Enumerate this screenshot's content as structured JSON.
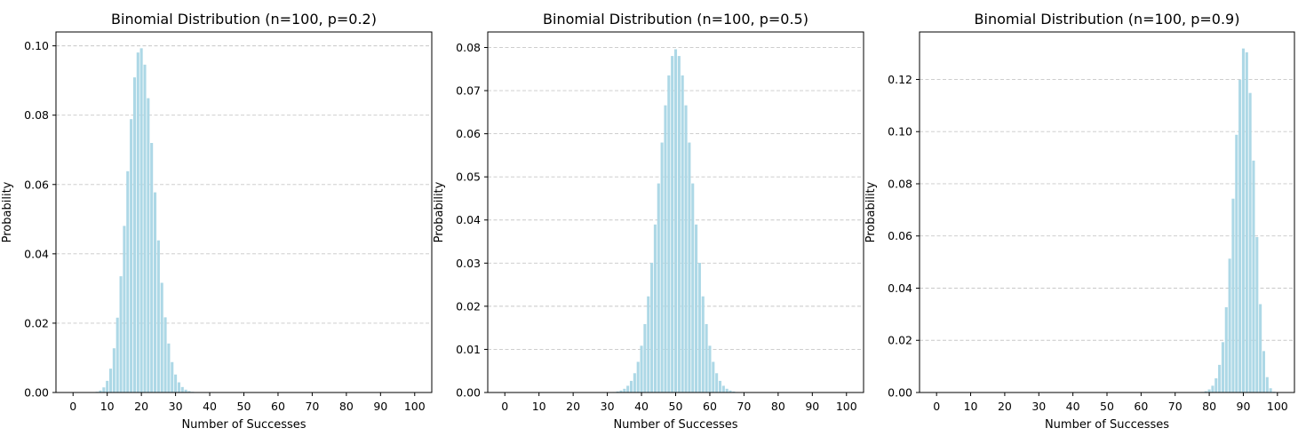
{
  "chart_data": [
    {
      "type": "bar",
      "title": "Binomial Distribution (n=100, p=0.2)",
      "xlabel": "Number of Successes",
      "ylabel": "Probability",
      "n": 100,
      "p": 0.2,
      "xlim": [
        -5,
        105
      ],
      "ylim": [
        0,
        0.104
      ],
      "xticks": [
        0,
        10,
        20,
        30,
        40,
        50,
        60,
        70,
        80,
        90,
        100
      ],
      "yticks": [
        0.0,
        0.02,
        0.04,
        0.06,
        0.08,
        0.1
      ],
      "ytick_labels": [
        "0.00",
        "0.02",
        "0.04",
        "0.06",
        "0.08",
        "0.10"
      ],
      "grid": "y-dashed",
      "bar_color": "#ADD8E6"
    },
    {
      "type": "bar",
      "title": "Binomial Distribution (n=100, p=0.5)",
      "xlabel": "Number of Successes",
      "ylabel": "Probability",
      "n": 100,
      "p": 0.5,
      "xlim": [
        -5,
        105
      ],
      "ylim": [
        0,
        0.0836
      ],
      "xticks": [
        0,
        10,
        20,
        30,
        40,
        50,
        60,
        70,
        80,
        90,
        100
      ],
      "yticks": [
        0.0,
        0.01,
        0.02,
        0.03,
        0.04,
        0.05,
        0.06,
        0.07,
        0.08
      ],
      "ytick_labels": [
        "0.00",
        "0.01",
        "0.02",
        "0.03",
        "0.04",
        "0.05",
        "0.06",
        "0.07",
        "0.08"
      ],
      "grid": "y-dashed",
      "bar_color": "#ADD8E6"
    },
    {
      "type": "bar",
      "title": "Binomial Distribution (n=100, p=0.9)",
      "xlabel": "Number of Successes",
      "ylabel": "Probability",
      "n": 100,
      "p": 0.9,
      "xlim": [
        -5,
        105
      ],
      "ylim": [
        0,
        0.1382
      ],
      "xticks": [
        0,
        10,
        20,
        30,
        40,
        50,
        60,
        70,
        80,
        90,
        100
      ],
      "yticks": [
        0.0,
        0.02,
        0.04,
        0.06,
        0.08,
        0.1,
        0.12
      ],
      "ytick_labels": [
        "0.00",
        "0.02",
        "0.04",
        "0.06",
        "0.08",
        "0.10",
        "0.12"
      ],
      "grid": "y-dashed",
      "bar_color": "#ADD8E6"
    }
  ]
}
